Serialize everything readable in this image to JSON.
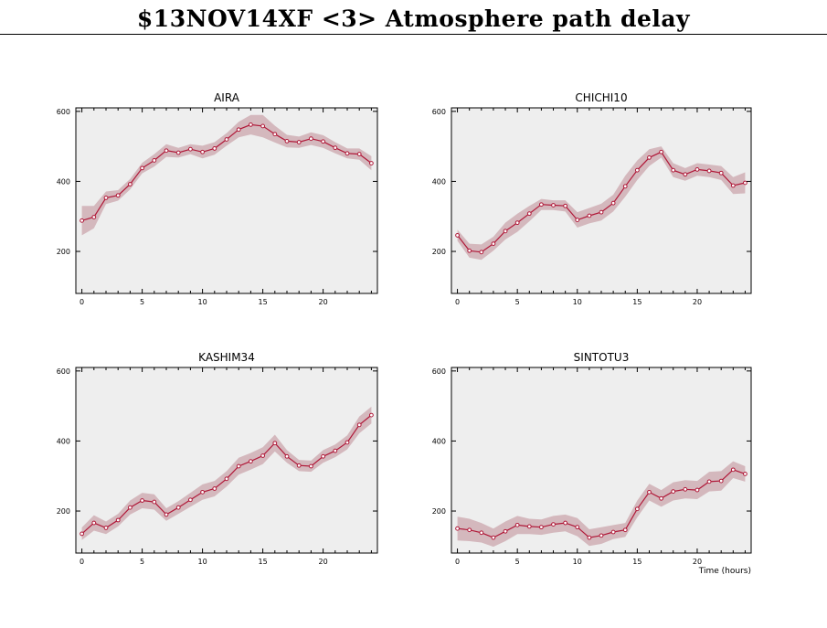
{
  "page": {
    "title": "$13NOV14XF <3>  Atmosphere path delay"
  },
  "colors": {
    "line": "#b01838",
    "band": "#d4b8bd",
    "panel_bg": "#eeeeee"
  },
  "chart_data": [
    {
      "type": "line",
      "title": "AIRA",
      "xlabel": "",
      "xlim": [
        -0.5,
        24.5
      ],
      "ylim": [
        80,
        610
      ],
      "xticks": [
        0,
        5,
        10,
        15,
        20
      ],
      "yticks": [
        200,
        400,
        600
      ],
      "x": [
        0,
        1,
        2,
        3,
        4,
        5,
        6,
        7,
        8,
        9,
        10,
        11,
        12,
        13,
        14,
        15,
        16,
        17,
        18,
        19,
        20,
        21,
        22,
        23,
        24
      ],
      "y": [
        288,
        298,
        353,
        360,
        392,
        438,
        460,
        488,
        482,
        492,
        484,
        494,
        520,
        548,
        562,
        558,
        535,
        515,
        512,
        522,
        514,
        496,
        480,
        478,
        452
      ],
      "band": [
        42,
        32,
        18,
        15,
        15,
        15,
        18,
        18,
        14,
        14,
        18,
        18,
        18,
        22,
        28,
        32,
        24,
        18,
        16,
        18,
        18,
        16,
        14,
        16,
        20
      ]
    },
    {
      "type": "line",
      "title": "CHICHI10",
      "xlabel": "",
      "xlim": [
        -0.5,
        24.5
      ],
      "ylim": [
        80,
        610
      ],
      "xticks": [
        0,
        5,
        10,
        15,
        20
      ],
      "yticks": [
        200,
        400,
        600
      ],
      "x": [
        0,
        1,
        2,
        3,
        4,
        5,
        6,
        7,
        8,
        9,
        10,
        11,
        12,
        13,
        14,
        15,
        16,
        17,
        18,
        19,
        20,
        21,
        22,
        23,
        24
      ],
      "y": [
        246,
        202,
        198,
        222,
        258,
        282,
        308,
        334,
        332,
        330,
        290,
        302,
        312,
        338,
        386,
        432,
        468,
        484,
        432,
        420,
        434,
        430,
        424,
        388,
        396
      ],
      "band": [
        16,
        20,
        22,
        20,
        24,
        26,
        22,
        16,
        14,
        16,
        22,
        22,
        24,
        24,
        30,
        28,
        24,
        16,
        20,
        18,
        18,
        18,
        20,
        24,
        30
      ]
    },
    {
      "type": "line",
      "title": "KASHIM34",
      "xlabel": "",
      "xlim": [
        -0.5,
        24.5
      ],
      "ylim": [
        80,
        610
      ],
      "xticks": [
        0,
        5,
        10,
        15,
        20
      ],
      "yticks": [
        200,
        400,
        600
      ],
      "x": [
        0,
        1,
        2,
        3,
        4,
        5,
        6,
        7,
        8,
        9,
        10,
        11,
        12,
        13,
        14,
        15,
        16,
        17,
        18,
        19,
        20,
        21,
        22,
        23,
        24
      ],
      "y": [
        135,
        166,
        152,
        174,
        210,
        230,
        226,
        190,
        210,
        232,
        254,
        264,
        292,
        328,
        342,
        358,
        394,
        356,
        330,
        328,
        356,
        372,
        396,
        446,
        474
      ],
      "band": [
        18,
        22,
        18,
        18,
        20,
        22,
        22,
        18,
        18,
        20,
        22,
        22,
        22,
        24,
        24,
        24,
        24,
        18,
        16,
        16,
        18,
        18,
        20,
        24,
        24
      ]
    },
    {
      "type": "line",
      "title": "SINTOTU3",
      "xlabel": "Time (hours)",
      "xlim": [
        -0.5,
        24.5
      ],
      "ylim": [
        80,
        610
      ],
      "xticks": [
        0,
        5,
        10,
        15,
        20
      ],
      "yticks": [
        200,
        400,
        600
      ],
      "x": [
        0,
        1,
        2,
        3,
        4,
        5,
        6,
        7,
        8,
        9,
        10,
        11,
        12,
        13,
        14,
        15,
        16,
        17,
        18,
        19,
        20,
        21,
        22,
        23,
        24
      ],
      "y": [
        150,
        146,
        138,
        124,
        142,
        160,
        156,
        154,
        162,
        166,
        154,
        124,
        130,
        140,
        146,
        206,
        254,
        236,
        256,
        262,
        260,
        284,
        286,
        318,
        306
      ],
      "band": [
        34,
        32,
        28,
        26,
        28,
        26,
        22,
        22,
        24,
        24,
        26,
        24,
        24,
        20,
        20,
        24,
        24,
        24,
        26,
        26,
        26,
        28,
        28,
        24,
        22
      ]
    }
  ]
}
